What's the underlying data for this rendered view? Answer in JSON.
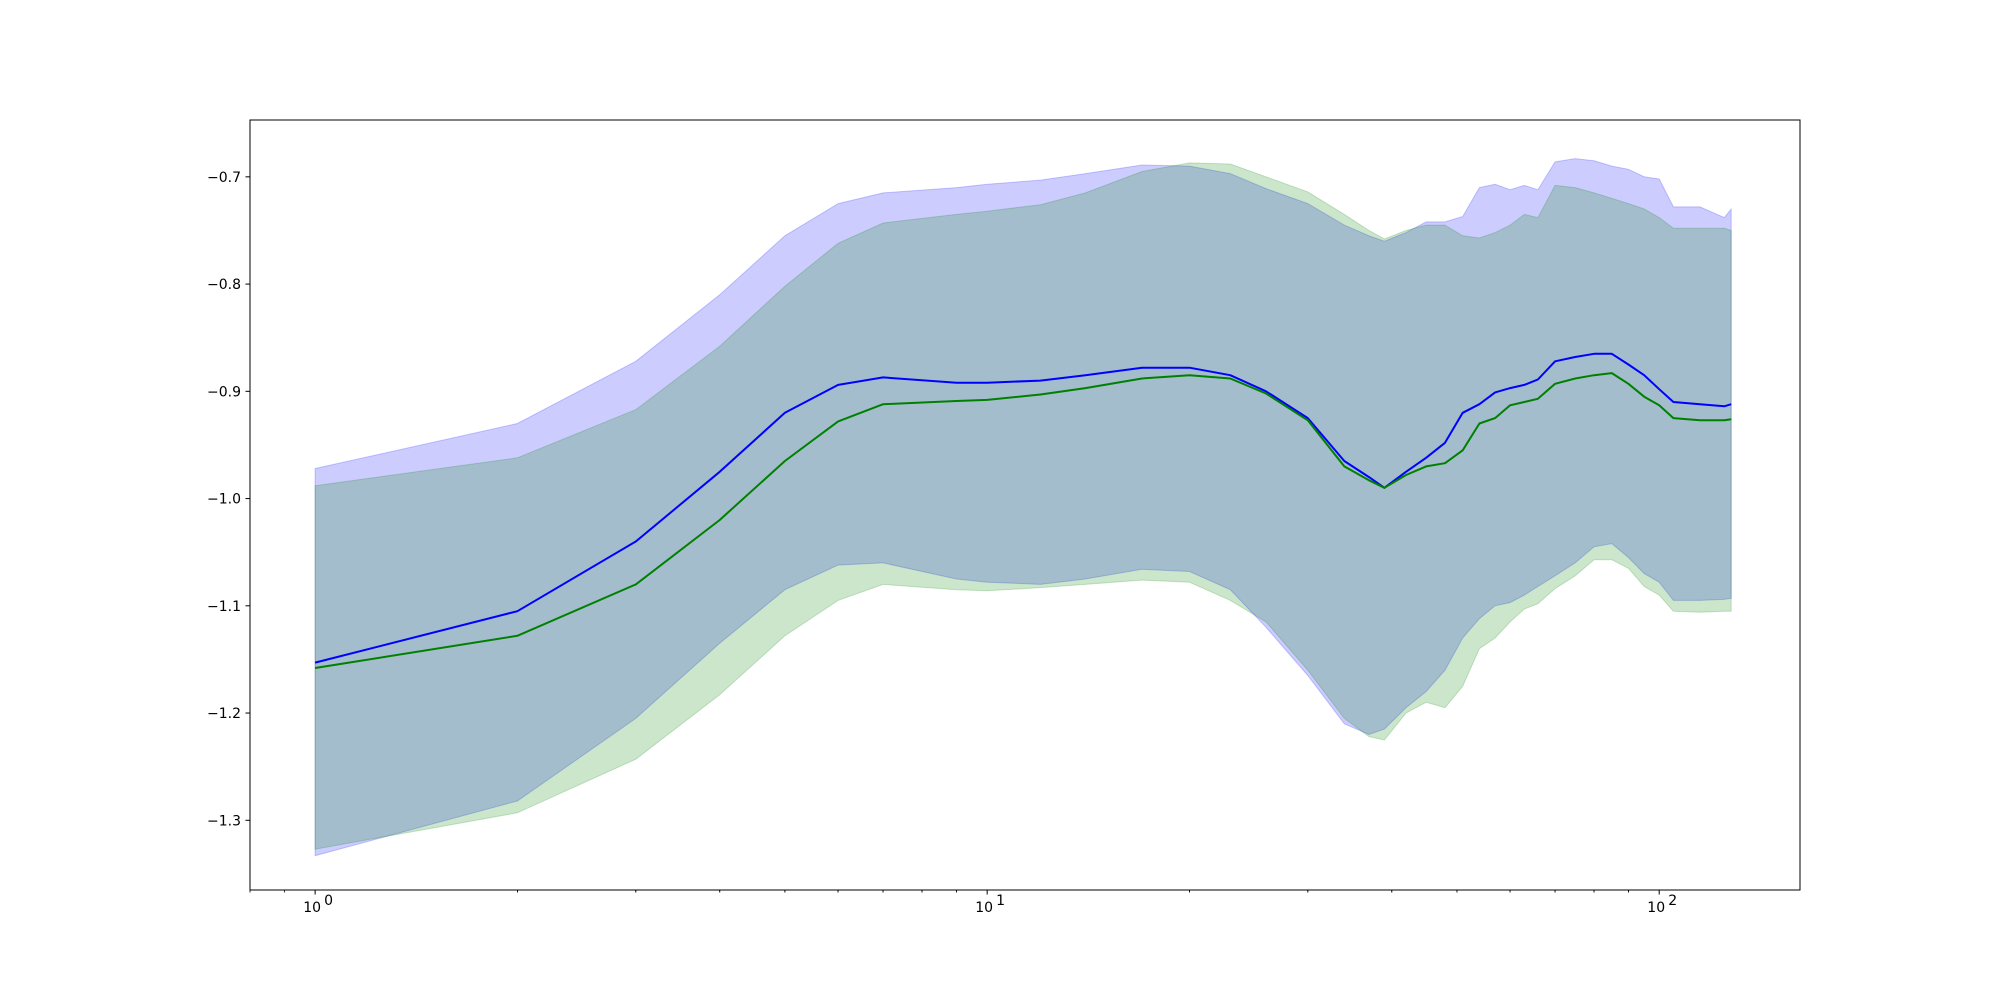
{
  "chart_data": {
    "type": "line",
    "xscale": "log",
    "xlim": [
      0.8,
      162
    ],
    "ylim": [
      -1.365,
      -0.647
    ],
    "grid": false,
    "legend": "none",
    "title": "",
    "xlabel": "",
    "ylabel": "",
    "x_ticks": [
      {
        "value": 1,
        "label": "10",
        "exponent": "0"
      },
      {
        "value": 10,
        "label": "10",
        "exponent": "1"
      },
      {
        "value": 100,
        "label": "10",
        "exponent": "2"
      }
    ],
    "y_ticks": [
      {
        "value": -0.7,
        "label": "−0.7"
      },
      {
        "value": -0.8,
        "label": "−0.8"
      },
      {
        "value": -0.9,
        "label": "−0.9"
      },
      {
        "value": -1.0,
        "label": "−1.0"
      },
      {
        "value": -1.1,
        "label": "−1.1"
      },
      {
        "value": -1.2,
        "label": "−1.2"
      },
      {
        "value": -1.3,
        "label": "−1.3"
      }
    ],
    "series": [
      {
        "color": "#0000ff",
        "band_color": "#0000ff",
        "band_opacity": 0.2,
        "x": [
          1,
          2,
          3,
          4,
          5,
          6,
          7,
          9,
          10,
          12,
          14,
          17,
          20,
          23,
          26,
          30,
          34,
          37,
          39,
          42,
          45,
          48,
          51,
          54,
          57,
          60,
          63,
          66,
          70,
          75,
          80,
          85,
          90,
          95,
          100,
          105,
          115,
          125,
          128
        ],
        "mean": [
          -1.153,
          -1.105,
          -1.04,
          -0.975,
          -0.92,
          -0.894,
          -0.887,
          -0.892,
          -0.892,
          -0.89,
          -0.885,
          -0.878,
          -0.878,
          -0.885,
          -0.9,
          -0.925,
          -0.965,
          -0.98,
          -0.99,
          -0.975,
          -0.962,
          -0.948,
          -0.92,
          -0.912,
          -0.901,
          -0.897,
          -0.894,
          -0.889,
          -0.872,
          -0.868,
          -0.865,
          -0.865,
          -0.875,
          -0.885,
          -0.898,
          -0.91,
          -0.912,
          -0.914,
          -0.912
        ],
        "upper": [
          -0.972,
          -0.93,
          -0.872,
          -0.81,
          -0.755,
          -0.725,
          -0.715,
          -0.71,
          -0.707,
          -0.703,
          -0.697,
          -0.689,
          -0.69,
          -0.697,
          -0.711,
          -0.725,
          -0.745,
          -0.755,
          -0.76,
          -0.752,
          -0.742,
          -0.742,
          -0.737,
          -0.71,
          -0.707,
          -0.712,
          -0.708,
          -0.712,
          -0.686,
          -0.683,
          -0.685,
          -0.69,
          -0.693,
          -0.7,
          -0.702,
          -0.728,
          -0.728,
          -0.738,
          -0.73
        ],
        "lower": [
          -1.333,
          -1.282,
          -1.205,
          -1.135,
          -1.085,
          -1.062,
          -1.06,
          -1.075,
          -1.078,
          -1.08,
          -1.075,
          -1.066,
          -1.068,
          -1.085,
          -1.12,
          -1.165,
          -1.21,
          -1.22,
          -1.215,
          -1.195,
          -1.18,
          -1.16,
          -1.13,
          -1.112,
          -1.1,
          -1.097,
          -1.09,
          -1.082,
          -1.072,
          -1.06,
          -1.045,
          -1.042,
          -1.055,
          -1.07,
          -1.078,
          -1.095,
          -1.095,
          -1.094,
          -1.093
        ]
      },
      {
        "color": "#008000",
        "band_color": "#008000",
        "band_opacity": 0.2,
        "x": [
          1,
          2,
          3,
          4,
          5,
          6,
          7,
          9,
          10,
          12,
          14,
          17,
          20,
          23,
          26,
          30,
          34,
          37,
          39,
          42,
          45,
          48,
          51,
          54,
          57,
          60,
          63,
          66,
          70,
          75,
          80,
          85,
          90,
          95,
          100,
          105,
          115,
          125,
          128
        ],
        "mean": [
          -1.158,
          -1.128,
          -1.08,
          -1.02,
          -0.965,
          -0.928,
          -0.912,
          -0.909,
          -0.908,
          -0.903,
          -0.897,
          -0.888,
          -0.885,
          -0.888,
          -0.902,
          -0.927,
          -0.97,
          -0.983,
          -0.99,
          -0.978,
          -0.97,
          -0.967,
          -0.955,
          -0.93,
          -0.925,
          -0.913,
          -0.91,
          -0.907,
          -0.893,
          -0.888,
          -0.885,
          -0.883,
          -0.893,
          -0.905,
          -0.913,
          -0.925,
          -0.927,
          -0.927,
          -0.926
        ],
        "upper": [
          -0.988,
          -0.962,
          -0.917,
          -0.858,
          -0.802,
          -0.762,
          -0.743,
          -0.735,
          -0.732,
          -0.726,
          -0.715,
          -0.695,
          -0.687,
          -0.688,
          -0.7,
          -0.714,
          -0.735,
          -0.75,
          -0.758,
          -0.75,
          -0.745,
          -0.745,
          -0.755,
          -0.757,
          -0.752,
          -0.745,
          -0.735,
          -0.738,
          -0.708,
          -0.71,
          -0.715,
          -0.72,
          -0.725,
          -0.73,
          -0.738,
          -0.748,
          -0.748,
          -0.748,
          -0.75
        ],
        "lower": [
          -1.327,
          -1.293,
          -1.243,
          -1.183,
          -1.128,
          -1.095,
          -1.08,
          -1.085,
          -1.086,
          -1.083,
          -1.08,
          -1.076,
          -1.078,
          -1.095,
          -1.115,
          -1.16,
          -1.205,
          -1.222,
          -1.225,
          -1.2,
          -1.19,
          -1.195,
          -1.175,
          -1.14,
          -1.13,
          -1.115,
          -1.103,
          -1.098,
          -1.084,
          -1.072,
          -1.057,
          -1.057,
          -1.065,
          -1.082,
          -1.09,
          -1.105,
          -1.106,
          -1.105,
          -1.105
        ]
      }
    ]
  }
}
